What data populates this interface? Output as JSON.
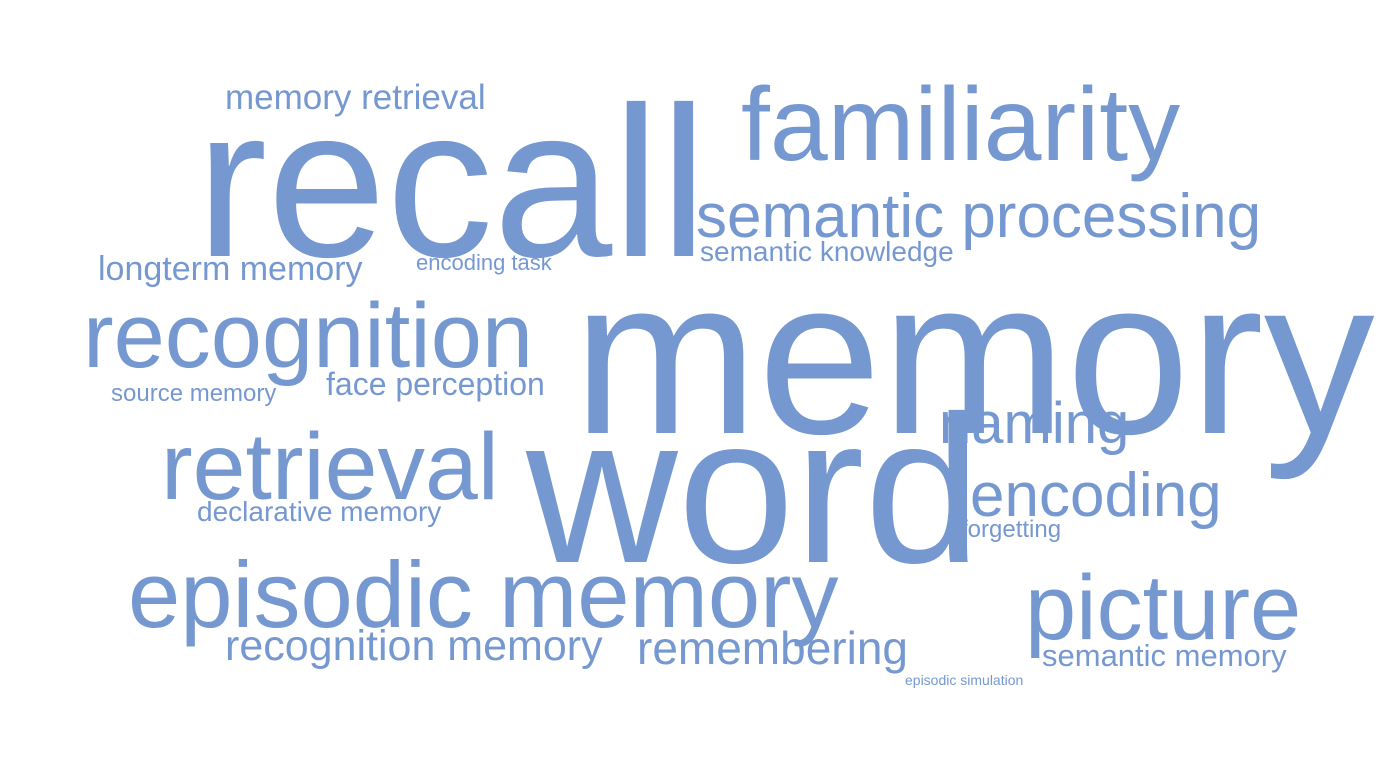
{
  "word_cloud": {
    "color": "#7698d1",
    "words": [
      {
        "text": "memory"
      },
      {
        "text": "word"
      },
      {
        "text": "recall"
      },
      {
        "text": "familiarity"
      },
      {
        "text": "semantic processing"
      },
      {
        "text": "semantic knowledge"
      },
      {
        "text": "memory retrieval"
      },
      {
        "text": "longterm memory"
      },
      {
        "text": "encoding task"
      },
      {
        "text": "recognition"
      },
      {
        "text": "source memory"
      },
      {
        "text": "face perception"
      },
      {
        "text": "naming"
      },
      {
        "text": "retrieval"
      },
      {
        "text": "declarative memory"
      },
      {
        "text": "encoding"
      },
      {
        "text": "forgetting"
      },
      {
        "text": "episodic memory"
      },
      {
        "text": "picture"
      },
      {
        "text": "recognition memory"
      },
      {
        "text": "remembering"
      },
      {
        "text": "semantic memory"
      },
      {
        "text": "episodic simulation"
      }
    ]
  }
}
